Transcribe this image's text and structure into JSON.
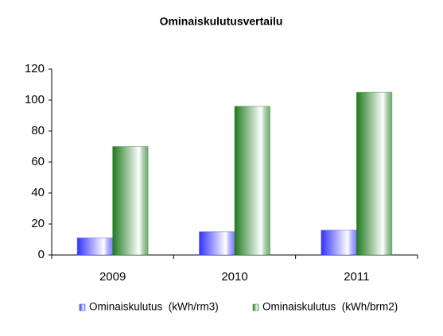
{
  "chart_data": {
    "type": "bar",
    "title": "Ominaiskulutusvertailu",
    "categories": [
      "2009",
      "2010",
      "2011"
    ],
    "series": [
      {
        "name": "Ominaiskulutus  (kWh/rm3)",
        "color": "#3333ff",
        "values": [
          11,
          15,
          16
        ]
      },
      {
        "name": "Ominaiskulutus  (kWh/brm2)",
        "color": "#1f7a1f",
        "values": [
          70,
          96,
          105
        ]
      }
    ],
    "ylim": [
      0,
      120
    ],
    "yticks": [
      0,
      20,
      40,
      60,
      80,
      100,
      120
    ],
    "grid": false,
    "legend": "bottom"
  }
}
